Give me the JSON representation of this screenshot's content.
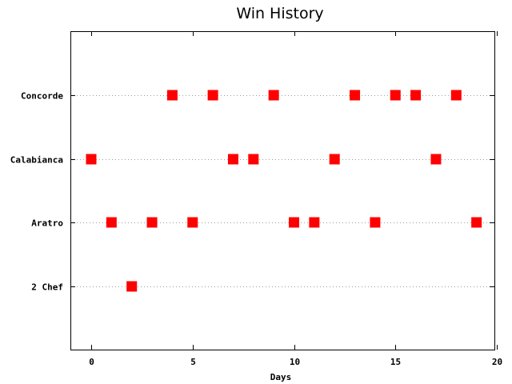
{
  "chart_data": {
    "type": "scatter",
    "title": "Win History",
    "xlabel": "Days",
    "ylabel": "",
    "xlim": [
      -1,
      20
    ],
    "x_ticks": [
      0,
      5,
      10,
      15,
      20
    ],
    "categories": [
      "2 Chef",
      "Aratro",
      "Calabianca",
      "Concorde"
    ],
    "grid": "horizontal dotted at categories",
    "marker": "square",
    "color": "#ff0000",
    "points": [
      {
        "x": 0,
        "y": "Calabianca"
      },
      {
        "x": 1,
        "y": "Aratro"
      },
      {
        "x": 2,
        "y": "2 Chef"
      },
      {
        "x": 3,
        "y": "Aratro"
      },
      {
        "x": 4,
        "y": "Concorde"
      },
      {
        "x": 5,
        "y": "Aratro"
      },
      {
        "x": 6,
        "y": "Concorde"
      },
      {
        "x": 7,
        "y": "Calabianca"
      },
      {
        "x": 8,
        "y": "Calabianca"
      },
      {
        "x": 9,
        "y": "Concorde"
      },
      {
        "x": 10,
        "y": "Aratro"
      },
      {
        "x": 11,
        "y": "Aratro"
      },
      {
        "x": 12,
        "y": "Calabianca"
      },
      {
        "x": 13,
        "y": "Concorde"
      },
      {
        "x": 14,
        "y": "Aratro"
      },
      {
        "x": 15,
        "y": "Concorde"
      },
      {
        "x": 16,
        "y": "Concorde"
      },
      {
        "x": 17,
        "y": "Calabianca"
      },
      {
        "x": 18,
        "y": "Concorde"
      },
      {
        "x": 19,
        "y": "Aratro"
      }
    ]
  }
}
